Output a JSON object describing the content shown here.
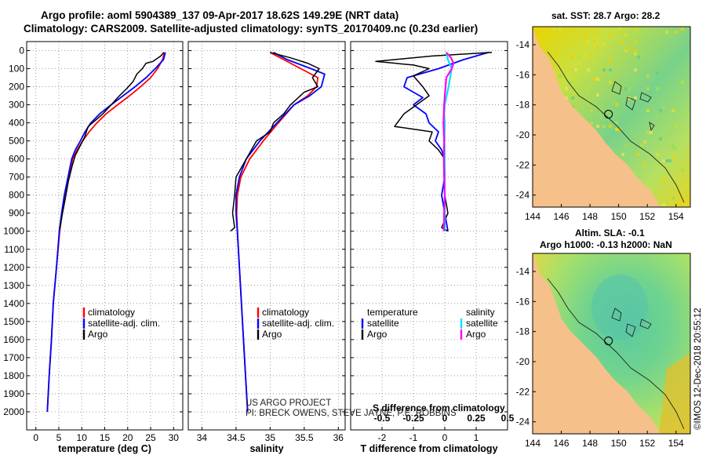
{
  "header": {
    "line1": "Argo profile: aoml 5904389_137 09-Apr-2017 18.62S 149.29E (NRT data)",
    "line2": "Climatology: CARS2009. Satellite-adjusted climatology: synTS_20170409.nc (0.23d earlier)"
  },
  "colors": {
    "climatology": "#ff0000",
    "satellite": "#0000ff",
    "argo": "#000000",
    "salinity_satellite": "#00e5ee",
    "salinity_argo": "#ff00ff",
    "land": "#f6c08a"
  },
  "chart_data": [
    {
      "type": "line",
      "name": "temperature-profile",
      "xlabel": "temperature (deg C)",
      "ylabel": "",
      "xlim": [
        -2,
        32
      ],
      "ylim": [
        2100,
        -50
      ],
      "xticks": [
        0,
        5,
        10,
        15,
        20,
        25,
        30
      ],
      "yticks": [
        0,
        100,
        200,
        300,
        400,
        500,
        600,
        700,
        800,
        900,
        1000,
        1100,
        1200,
        1300,
        1400,
        1500,
        1600,
        1700,
        1800,
        1900,
        2000
      ],
      "legend": [
        "climatology",
        "satellite-adj. clim.",
        "Argo"
      ],
      "series": [
        {
          "name": "climatology",
          "points": [
            [
              28.0,
              10
            ],
            [
              27.6,
              50
            ],
            [
              26.5,
              100
            ],
            [
              25.0,
              150
            ],
            [
              22.8,
              200
            ],
            [
              20.4,
              250
            ],
            [
              17.8,
              300
            ],
            [
              15.3,
              350
            ],
            [
              13.3,
              400
            ],
            [
              11.6,
              450
            ],
            [
              10.2,
              500
            ],
            [
              9.0,
              550
            ],
            [
              8.0,
              600
            ],
            [
              7.2,
              700
            ],
            [
              6.3,
              800
            ],
            [
              5.7,
              900
            ],
            [
              5.2,
              1000
            ],
            [
              4.5,
              1200
            ],
            [
              3.8,
              1400
            ],
            [
              3.4,
              1600
            ],
            [
              2.9,
              1800
            ],
            [
              2.5,
              2000
            ]
          ]
        },
        {
          "name": "satellite-adj. clim.",
          "points": [
            [
              28.2,
              10
            ],
            [
              27.8,
              50
            ],
            [
              26.0,
              100
            ],
            [
              24.0,
              150
            ],
            [
              21.6,
              200
            ],
            [
              19.0,
              250
            ],
            [
              16.4,
              300
            ],
            [
              13.9,
              350
            ],
            [
              12.0,
              400
            ],
            [
              10.7,
              450
            ],
            [
              9.7,
              500
            ],
            [
              8.6,
              550
            ],
            [
              7.8,
              600
            ],
            [
              7.0,
              700
            ],
            [
              6.2,
              800
            ],
            [
              5.6,
              900
            ],
            [
              5.1,
              1000
            ],
            [
              4.5,
              1200
            ],
            [
              3.8,
              1400
            ],
            [
              3.4,
              1600
            ],
            [
              2.9,
              1800
            ],
            [
              2.5,
              2000
            ]
          ]
        },
        {
          "name": "Argo",
          "points": [
            [
              27.9,
              10
            ],
            [
              27.2,
              30
            ],
            [
              25.5,
              60
            ],
            [
              24.0,
              70
            ],
            [
              23.2,
              100
            ],
            [
              22.0,
              130
            ],
            [
              21.2,
              170
            ],
            [
              19.8,
              210
            ],
            [
              18.2,
              250
            ],
            [
              16.4,
              300
            ],
            [
              14.6,
              350
            ],
            [
              12.8,
              390
            ],
            [
              11.4,
              420
            ],
            [
              10.6,
              480
            ],
            [
              9.6,
              530
            ],
            [
              8.6,
              580
            ],
            [
              7.9,
              640
            ],
            [
              7.1,
              720
            ],
            [
              6.4,
              820
            ],
            [
              5.8,
              900
            ],
            [
              5.2,
              990
            ]
          ]
        }
      ]
    },
    {
      "type": "line",
      "name": "salinity-profile",
      "xlabel": "salinity",
      "ylabel": "",
      "xlim": [
        33.8,
        36.1
      ],
      "ylim": [
        2100,
        -50
      ],
      "xticks": [
        34,
        34.5,
        35,
        35.5,
        36
      ],
      "legend": [
        "climatology",
        "satellite-adj. clim.",
        "Argo"
      ],
      "series": [
        {
          "name": "climatology",
          "points": [
            [
              35.0,
              10
            ],
            [
              35.2,
              50
            ],
            [
              35.45,
              100
            ],
            [
              35.7,
              150
            ],
            [
              35.68,
              200
            ],
            [
              35.55,
              250
            ],
            [
              35.35,
              300
            ],
            [
              35.12,
              400
            ],
            [
              34.9,
              500
            ],
            [
              34.7,
              600
            ],
            [
              34.57,
              700
            ],
            [
              34.52,
              800
            ],
            [
              34.51,
              900
            ],
            [
              34.52,
              1000
            ],
            [
              34.55,
              1200
            ],
            [
              34.58,
              1400
            ],
            [
              34.61,
              1600
            ],
            [
              34.64,
              1800
            ],
            [
              34.67,
              2000
            ]
          ]
        },
        {
          "name": "satellite-adj. clim.",
          "points": [
            [
              35.05,
              10
            ],
            [
              35.25,
              50
            ],
            [
              35.6,
              100
            ],
            [
              35.8,
              130
            ],
            [
              35.75,
              200
            ],
            [
              35.58,
              250
            ],
            [
              35.35,
              300
            ],
            [
              35.1,
              400
            ],
            [
              34.85,
              500
            ],
            [
              34.65,
              600
            ],
            [
              34.55,
              700
            ],
            [
              34.5,
              800
            ],
            [
              34.5,
              900
            ],
            [
              34.52,
              1000
            ],
            [
              34.55,
              1200
            ],
            [
              34.58,
              1400
            ],
            [
              34.61,
              1600
            ],
            [
              34.64,
              1800
            ],
            [
              34.67,
              2000
            ]
          ]
        },
        {
          "name": "Argo",
          "points": [
            [
              35.0,
              10
            ],
            [
              35.3,
              40
            ],
            [
              35.55,
              70
            ],
            [
              35.72,
              100
            ],
            [
              35.62,
              150
            ],
            [
              35.7,
              200
            ],
            [
              35.5,
              230
            ],
            [
              35.3,
              300
            ],
            [
              35.2,
              350
            ],
            [
              35.05,
              400
            ],
            [
              35.0,
              450
            ],
            [
              34.8,
              500
            ],
            [
              34.65,
              600
            ],
            [
              34.5,
              700
            ],
            [
              34.48,
              800
            ],
            [
              34.45,
              900
            ],
            [
              34.48,
              980
            ],
            [
              34.42,
              1000
            ]
          ]
        }
      ]
    },
    {
      "type": "line",
      "name": "difference-from-climatology",
      "xlabel": "T difference from climatology",
      "xlabel2": "S difference from climatology",
      "xlim": [
        -3.0,
        2.0
      ],
      "xlim_salinity": [
        -0.75,
        0.5
      ],
      "ylim": [
        2100,
        -50
      ],
      "xticks": [
        -2,
        -1,
        0,
        1
      ],
      "xticks_salinity": [
        "-0.5",
        "-0.25",
        "0",
        "0.25",
        "0.5"
      ],
      "legend": {
        "temperature": {
          "title": "temperature",
          "items": [
            "satellite",
            "Argo"
          ]
        },
        "salinity": {
          "title": "salinity",
          "items": [
            "satellite",
            "Argo"
          ]
        }
      },
      "series": [
        {
          "name": "temperature satellite",
          "points": [
            [
              1.4,
              10
            ],
            [
              0.6,
              50
            ],
            [
              -0.2,
              100
            ],
            [
              -1.2,
              150
            ],
            [
              -1.3,
              200
            ],
            [
              -0.7,
              260
            ],
            [
              -1.0,
              300
            ],
            [
              -0.6,
              350
            ],
            [
              -0.5,
              400
            ],
            [
              -0.2,
              450
            ],
            [
              -0.3,
              500
            ],
            [
              -0.1,
              550
            ],
            [
              0.0,
              600
            ],
            [
              0.0,
              700
            ],
            [
              -0.1,
              800
            ],
            [
              0.0,
              900
            ],
            [
              0.1,
              1000
            ]
          ]
        },
        {
          "name": "temperature Argo",
          "points": [
            [
              1.5,
              10
            ],
            [
              -0.4,
              30
            ],
            [
              -2.2,
              60
            ],
            [
              -1.0,
              80
            ],
            [
              -0.5,
              100
            ],
            [
              -1.0,
              140
            ],
            [
              -0.7,
              200
            ],
            [
              -0.5,
              250
            ],
            [
              -1.3,
              350
            ],
            [
              -1.6,
              420
            ],
            [
              -0.4,
              450
            ],
            [
              -0.5,
              500
            ],
            [
              -0.2,
              550
            ],
            [
              0.0,
              600
            ],
            [
              0.0,
              700
            ],
            [
              0.0,
              800
            ],
            [
              0.1,
              900
            ],
            [
              -0.1,
              980
            ],
            [
              0.1,
              1000
            ]
          ]
        },
        {
          "name": "salinity satellite",
          "points": [
            [
              0.05,
              10
            ],
            [
              0.1,
              50
            ],
            [
              0.22,
              100
            ],
            [
              0.12,
              200
            ],
            [
              0.0,
              300
            ],
            [
              -0.02,
              350
            ],
            [
              0.0,
              400
            ],
            [
              -0.01,
              500
            ],
            [
              0.0,
              600
            ],
            [
              -0.01,
              700
            ],
            [
              0.0,
              800
            ],
            [
              0.0,
              900
            ],
            [
              0.0,
              1000
            ]
          ]
        },
        {
          "name": "salinity Argo",
          "points": [
            [
              0.05,
              10
            ],
            [
              0.2,
              40
            ],
            [
              0.28,
              70
            ],
            [
              0.22,
              100
            ],
            [
              0.05,
              150
            ],
            [
              0.0,
              250
            ],
            [
              -0.02,
              300
            ],
            [
              -0.04,
              400
            ],
            [
              -0.02,
              500
            ],
            [
              -0.03,
              600
            ],
            [
              -0.02,
              700
            ],
            [
              0.0,
              800
            ],
            [
              -0.02,
              900
            ],
            [
              -0.03,
              1000
            ]
          ]
        }
      ]
    },
    {
      "type": "heatmap",
      "name": "sst-map",
      "title": "sat. SST: 28.7 Argo: 28.2",
      "x": [
        144,
        146,
        148,
        150,
        152,
        154
      ],
      "y": [
        -14,
        -16,
        -18,
        -20,
        -22,
        -24
      ],
      "xlim": [
        144,
        155
      ],
      "ylim": [
        -24.8,
        -12.8
      ],
      "float_position": [
        149.29,
        -18.62
      ]
    },
    {
      "type": "heatmap",
      "name": "sla-map",
      "title": "Altim. SLA: -0.1",
      "subtitle": "Argo h1000: -0.13 h2000: NaN",
      "x": [
        144,
        146,
        148,
        150,
        152,
        154
      ],
      "y": [
        -14,
        -16,
        -18,
        -20,
        -22,
        -24
      ],
      "xlim": [
        144,
        155
      ],
      "ylim": [
        -24.8,
        -12.8
      ],
      "float_position": [
        149.29,
        -18.62
      ]
    }
  ],
  "credits": {
    "project": "US ARGO PROJECT",
    "pis": "PI: BRECK OWENS, STEVE JAYNE, P.E. ROBBINS",
    "stamp": "©IMOS 12-Dec-2018 20:55:12"
  }
}
